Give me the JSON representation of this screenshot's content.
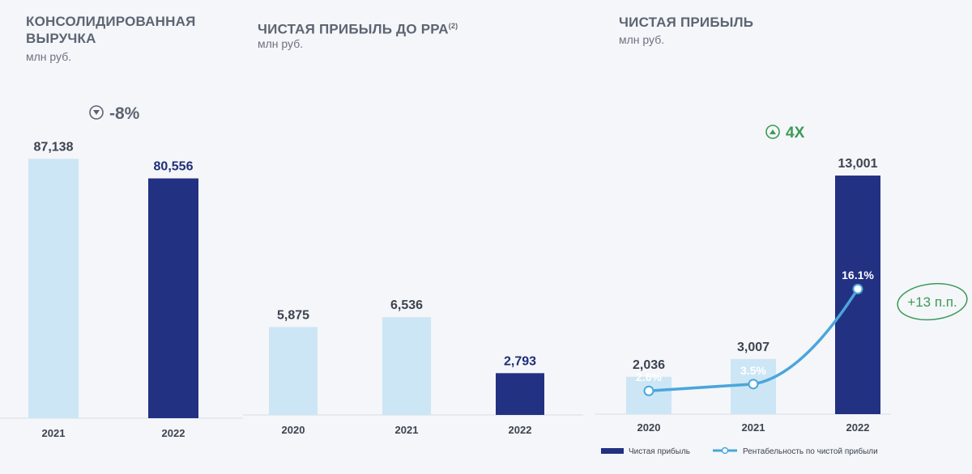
{
  "panels": {
    "revenue": {
      "title_line1": "КОНСОЛИДИРОВАННАЯ",
      "title_line2": "ВЫРУЧКА",
      "unit": "млн руб.",
      "change": "-8%"
    },
    "ebitda": {
      "title": "ЧИСТАЯ ПРИБЫЛЬ ДО РРА",
      "title_sup": "(2)",
      "unit": "млн руб."
    },
    "net_profit": {
      "title": "ЧИСТАЯ ПРИБЫЛЬ",
      "unit": "млн руб.",
      "change": "4X",
      "margin_change": "+13 п.п.",
      "legend": {
        "bars": "Чистая прибыль",
        "line": "Рентабельность по чистой прибыли"
      }
    }
  },
  "colors": {
    "light_bar": "#cde6f5",
    "dark_bar": "#223181",
    "line": "#4aa6db",
    "green": "#3b9a57"
  },
  "chart_data": [
    {
      "type": "bar",
      "title": "КОНСОЛИДИРОВАННАЯ ВЫРУЧКА",
      "ylabel": "млн руб.",
      "categories": [
        "2021",
        "2022"
      ],
      "values": [
        87138,
        80556
      ],
      "value_labels": [
        "87,138",
        "80,556"
      ],
      "ylim": [
        0,
        100000
      ]
    },
    {
      "type": "bar",
      "title": "ЧИСТАЯ ПРИБЫЛЬ ДО РРА",
      "ylabel": "млн руб.",
      "categories": [
        "2020",
        "2021",
        "2022"
      ],
      "values": [
        5875,
        6536,
        2793
      ],
      "value_labels": [
        "5,875",
        "6,536",
        "2,793"
      ],
      "ylim": [
        0,
        20000
      ]
    },
    {
      "type": "bar",
      "title": "ЧИСТАЯ ПРИБЫЛЬ",
      "ylabel": "млн руб.",
      "categories": [
        "2020",
        "2021",
        "2022"
      ],
      "values": [
        2036,
        3007,
        13001
      ],
      "value_labels": [
        "2,036",
        "3,007",
        "13,001"
      ],
      "ylim": [
        0,
        16000
      ],
      "line_series": {
        "name": "Рентабельность по чистой прибыли",
        "values": [
          2.6,
          3.5,
          16.1
        ],
        "value_labels": [
          "2.6%",
          "3.5%",
          "16.1%"
        ],
        "ylim": [
          0,
          20
        ]
      }
    }
  ]
}
